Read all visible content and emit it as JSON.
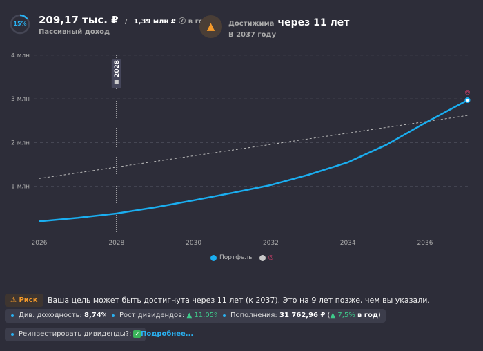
{
  "header": {
    "progress_percent": 15,
    "progress_label": "15%",
    "income": "209,17 тыс. ₽",
    "separator": "/",
    "goal": "1,39 млн ₽",
    "period": "в год",
    "income_label": "Пассивный доход",
    "reach_prefix": "Достижима",
    "reach_value": "через 11 лет",
    "reach_year": "В 2037 году"
  },
  "chart_data": {
    "type": "line",
    "xlim": [
      2026,
      2037.1
    ],
    "ylim": [
      0,
      4
    ],
    "x_ticks": [
      "2026",
      "2028",
      "2030",
      "2032",
      "2034",
      "2036"
    ],
    "y_ticks": [
      "1 млн",
      "2 млн",
      "3 млн",
      "4 млн"
    ],
    "marker_label": "2028",
    "marker_x": 2028,
    "series": [
      {
        "name": "Портфель",
        "color": "#1aaef0",
        "x": [
          2026,
          2027,
          2028,
          2029,
          2030,
          2031,
          2032,
          2033,
          2034,
          2035,
          2036,
          2037.1
        ],
        "y": [
          0.2,
          0.28,
          0.38,
          0.52,
          0.68,
          0.85,
          1.03,
          1.27,
          1.55,
          1.95,
          2.45,
          2.97
        ]
      },
      {
        "name": "",
        "color": "#bbbbbb",
        "x": [
          2026,
          2037.1
        ],
        "y": [
          1.18,
          2.62
        ]
      }
    ]
  },
  "legend": {
    "portfolio": "Портфель"
  },
  "footer": {
    "risk_label": "Риск",
    "message": "Ваша цель может быть достигнута через 11 лет (к 2037). Это на 9 лет позже, чем вы указали.",
    "div_yield_label": "Див. доходность:",
    "div_yield": "8,74%",
    "div_growth_label": "Рост дивидендов:",
    "div_growth": "▲ 11,05%",
    "topup_label": "Пополнения:",
    "topup": "31 762,96 ₽",
    "topup_growth": "▲ 7,5%",
    "topup_period": "в год",
    "reinvest_label": "Реинвестировать дивиденды?:",
    "reinvest_check": "✓",
    "more_link": "Подробнее..."
  }
}
